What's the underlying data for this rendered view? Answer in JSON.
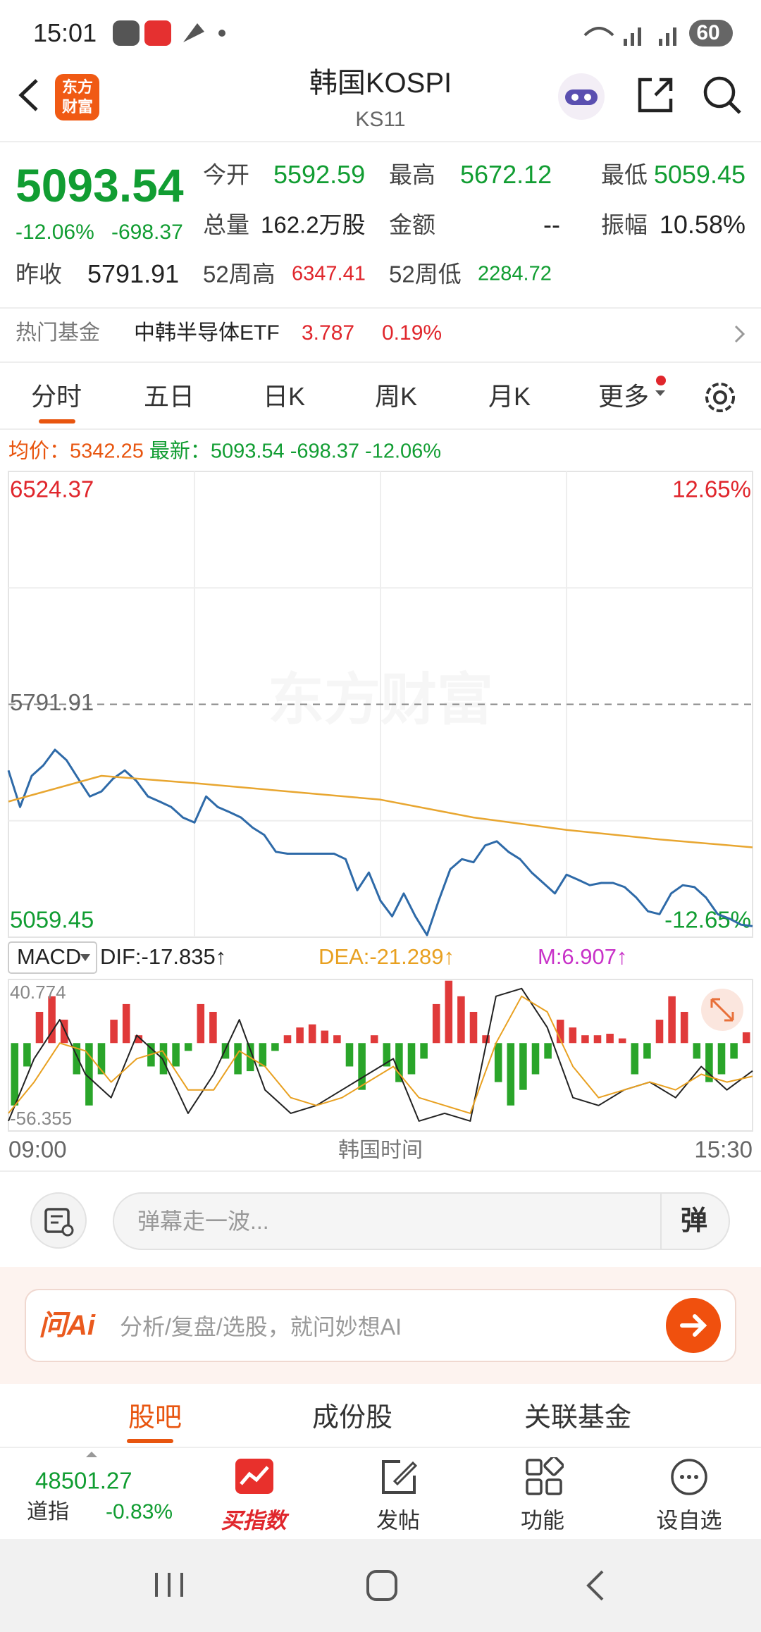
{
  "status_bar": {
    "time": "15:01",
    "battery": "60"
  },
  "header": {
    "logo_lines": [
      "东方",
      "财富"
    ],
    "title": "韩国KOSPI",
    "code": "KS11"
  },
  "quote": {
    "price": "5093.54",
    "change_pct": "-12.06%",
    "change": "-698.37",
    "stats": [
      {
        "label": "今开",
        "value": "5592.59"
      },
      {
        "label": "最高",
        "value": "5672.12"
      },
      {
        "label": "最低",
        "value": "5059.45"
      },
      {
        "label": "总量",
        "value": "162.2万股"
      },
      {
        "label": "金额",
        "value": "--"
      },
      {
        "label": "振幅",
        "value": "10.58%"
      },
      {
        "label": "昨收",
        "value": "5791.91"
      },
      {
        "label": "52周高",
        "value": "6347.41"
      },
      {
        "label": "52周低",
        "value": "2284.72"
      }
    ]
  },
  "hot_fund": {
    "label": "热门基金",
    "name": "中韩半导体ETF",
    "price": "3.787",
    "pct": "0.19%"
  },
  "tabs": [
    "分时",
    "五日",
    "日K",
    "周K",
    "月K",
    "更多"
  ],
  "info_line": {
    "avg_label": "均价：",
    "avg": "5342.25",
    "latest_label": "最新：",
    "latest": "5093.54",
    "change": "-698.37",
    "pct": "-12.06%"
  },
  "watermark": "东方财富",
  "chart_data": [
    {
      "type": "line",
      "ylim": [
        5059.45,
        6524.37
      ],
      "yticks": [
        6524.37,
        5791.91,
        5059.45
      ],
      "y2lim": [
        -12.65,
        12.65
      ],
      "y2ticks": [
        {
          "value": 12.65,
          "label": "12.65%"
        },
        {
          "value": -12.65,
          "label": "-12.65%"
        }
      ],
      "xlim": [
        0,
        390
      ],
      "xticks": [
        {
          "value": 0,
          "label": "09:00"
        },
        {
          "value": 390,
          "label": "15:30"
        }
      ],
      "xlabel": "韩国时间",
      "series": [
        {
          "name": "price",
          "color": "#2e6aa8",
          "values": [
            5584,
            5469,
            5567,
            5600,
            5649,
            5616,
            5558,
            5502,
            5518,
            5558,
            5584,
            5551,
            5502,
            5486,
            5469,
            5436,
            5420,
            5502,
            5469,
            5453,
            5436,
            5404,
            5381,
            5328,
            5322,
            5322,
            5322,
            5322,
            5322,
            5305,
            5207,
            5263,
            5174,
            5125,
            5197,
            5125,
            5066,
            5174,
            5273,
            5305,
            5295,
            5348,
            5361,
            5328,
            5305,
            5263,
            5230,
            5197,
            5256,
            5240,
            5223,
            5230,
            5230,
            5217,
            5184,
            5141,
            5132,
            5197,
            5223,
            5217,
            5184,
            5132,
            5118,
            5099,
            5094
          ]
        },
        {
          "name": "average",
          "color": "#e8a630",
          "values": [
            5486,
            5567,
            5544,
            5518,
            5492,
            5436,
            5397,
            5367,
            5342
          ]
        }
      ]
    },
    {
      "type": "macd",
      "indicator": "MACD",
      "ylim": [
        -56.355,
        40.774
      ],
      "yticks": [
        40.774,
        -56.355
      ],
      "series": [
        {
          "name": "DIF:-17.835↑",
          "color": "#222222",
          "values": [
            -50,
            -10,
            15,
            -20,
            -35,
            5,
            -10,
            -45,
            -20,
            15,
            -30,
            -45,
            -40,
            -30,
            -20,
            -10,
            -50,
            -45,
            -50,
            30,
            35,
            10,
            -35,
            -40,
            -30,
            -25,
            -35,
            -15,
            -30,
            -17.835
          ]
        },
        {
          "name": "DEA:-21.289↑",
          "color": "#e8a020",
          "values": [
            -45,
            -25,
            0,
            -5,
            -25,
            -10,
            -5,
            -30,
            -30,
            -5,
            -15,
            -35,
            -40,
            -35,
            -25,
            -15,
            -35,
            -40,
            -45,
            0,
            30,
            20,
            -15,
            -35,
            -30,
            -25,
            -30,
            -20,
            -25,
            -21.289
          ]
        },
        {
          "name": "M:6.907↑",
          "type": "bar",
          "color": "#e03a3a",
          "negative_color": "#2aa52a",
          "legend_color": "#c832c8",
          "values": [
            -40,
            -15,
            20,
            30,
            15,
            -20,
            -40,
            -20,
            15,
            25,
            5,
            -15,
            -20,
            -15,
            -5,
            25,
            20,
            -10,
            -20,
            -18,
            -15,
            -5,
            5,
            10,
            12,
            8,
            5,
            -15,
            -30,
            5,
            -15,
            -25,
            -20,
            -10,
            25,
            40,
            30,
            20,
            5,
            -25,
            -40,
            -30,
            -20,
            -10,
            15,
            10,
            5,
            5,
            6,
            3,
            -20,
            -10,
            15,
            30,
            20,
            -10,
            -25,
            -20,
            -10,
            6.907
          ]
        }
      ]
    }
  ],
  "comment": {
    "placeholder": "弹幕走一波...",
    "button": "弹"
  },
  "ai": {
    "logo": "问Ai",
    "placeholder": "分析/复盘/选股，就问妙想AI"
  },
  "sub_tabs": [
    "股吧",
    "成份股",
    "关联基金"
  ],
  "bottom_nav": {
    "index_value": "48501.27",
    "index_name": "道指",
    "index_pct": "-0.83%",
    "items": [
      "买指数",
      "发帖",
      "功能",
      "设自选"
    ]
  }
}
